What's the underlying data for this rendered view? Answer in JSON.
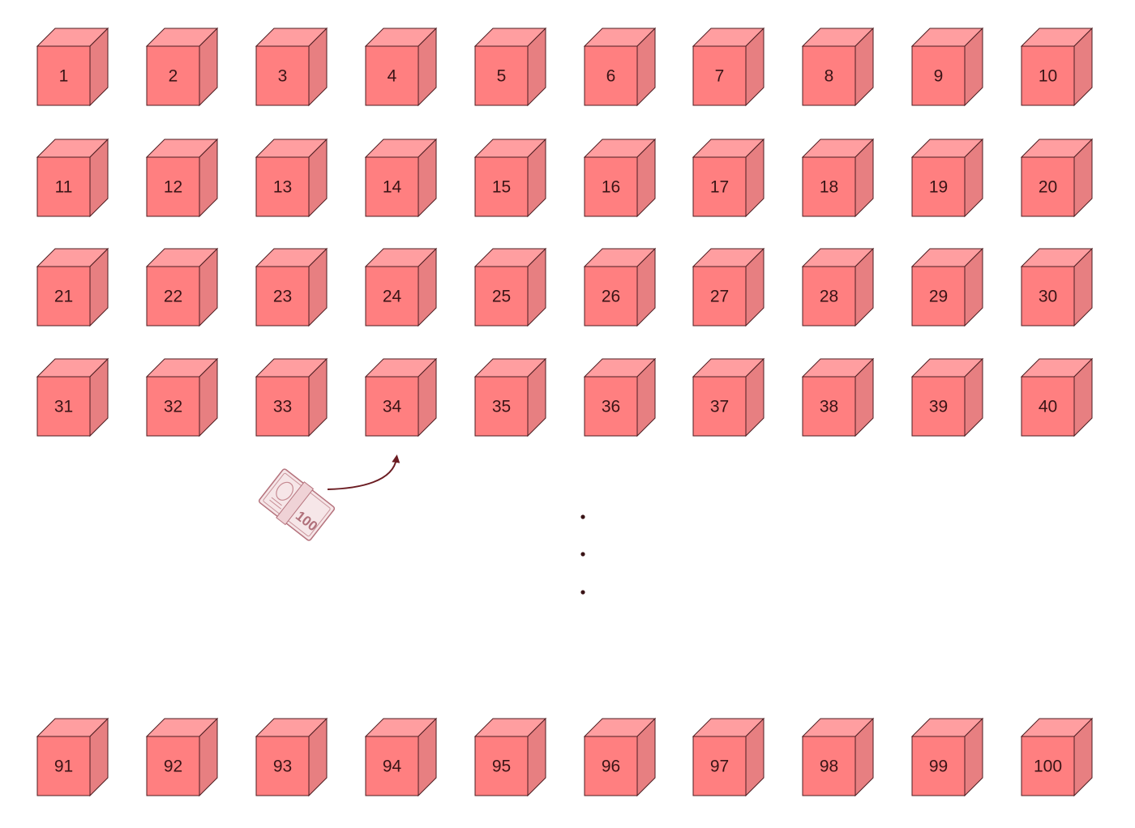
{
  "colors": {
    "front": "#ff7f80",
    "top": "#ff9ea0",
    "side": "#e77f81",
    "stroke": "#4e1e22",
    "text": "#3a1416",
    "arrow": "#6b1c22",
    "bill": "#b5737d",
    "dots": "#3a1416"
  },
  "rows": [
    {
      "labels": [
        "1",
        "2",
        "3",
        "4",
        "5",
        "6",
        "7",
        "8",
        "9",
        "10"
      ]
    },
    {
      "labels": [
        "11",
        "12",
        "13",
        "14",
        "15",
        "16",
        "17",
        "18",
        "19",
        "20"
      ]
    },
    {
      "labels": [
        "21",
        "22",
        "23",
        "24",
        "25",
        "26",
        "27",
        "28",
        "29",
        "30"
      ]
    },
    {
      "labels": [
        "31",
        "32",
        "33",
        "34",
        "35",
        "36",
        "37",
        "38",
        "39",
        "40"
      ]
    },
    {
      "labels": [
        "91",
        "92",
        "93",
        "94",
        "95",
        "96",
        "97",
        "98",
        "99",
        "100"
      ]
    }
  ],
  "money": {
    "icon": "money-bundle-icon",
    "bill_label": "100",
    "target": "34"
  },
  "ellipsis_count": 3
}
